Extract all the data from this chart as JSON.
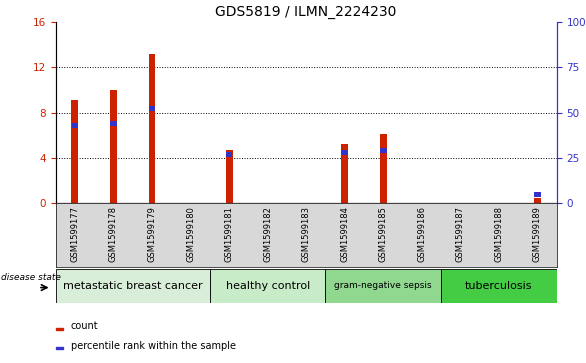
{
  "title": "GDS5819 / ILMN_2224230",
  "samples": [
    "GSM1599177",
    "GSM1599178",
    "GSM1599179",
    "GSM1599180",
    "GSM1599181",
    "GSM1599182",
    "GSM1599183",
    "GSM1599184",
    "GSM1599185",
    "GSM1599186",
    "GSM1599187",
    "GSM1599188",
    "GSM1599189"
  ],
  "count_values": [
    9.1,
    10.0,
    13.2,
    0.0,
    4.7,
    0.0,
    0.0,
    5.2,
    6.1,
    0.0,
    0.0,
    0.0,
    0.45
  ],
  "percentile_values": [
    43,
    44,
    52,
    0,
    27,
    0,
    0,
    28,
    29,
    0,
    0,
    0,
    5
  ],
  "ylim_left": [
    0,
    16
  ],
  "ylim_right": [
    0,
    100
  ],
  "yticks_left": [
    0,
    4,
    8,
    12,
    16
  ],
  "yticks_right": [
    0,
    25,
    50,
    75,
    100
  ],
  "bar_color_red": "#cc2200",
  "bar_color_blue": "#3333cc",
  "groups": [
    {
      "label": "metastatic breast cancer",
      "start": 0,
      "end": 4,
      "color": "#d8eed8"
    },
    {
      "label": "healthy control",
      "start": 4,
      "end": 7,
      "color": "#c8ecc8"
    },
    {
      "label": "gram-negative sepsis",
      "start": 7,
      "end": 10,
      "color": "#90d890"
    },
    {
      "label": "tuberculosis",
      "start": 10,
      "end": 13,
      "color": "#44cc44"
    }
  ],
  "disease_state_label": "disease state",
  "legend_count_label": "count",
  "legend_percentile_label": "percentile rank within the sample",
  "bar_width": 0.18,
  "title_fontsize": 10,
  "tick_fontsize": 7.5,
  "xlabel_fontsize": 6.0,
  "group_fontsize": 8
}
